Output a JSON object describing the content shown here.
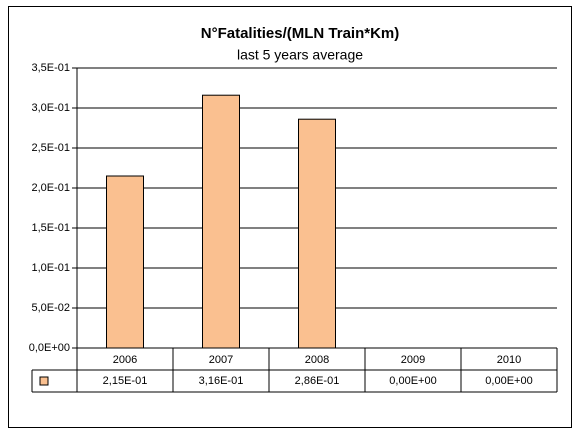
{
  "chart_data": {
    "type": "bar",
    "title": "N°Fatalities/(MLN Train*Km)",
    "subtitle": "last 5 years average",
    "categories": [
      "2006",
      "2007",
      "2008",
      "2009",
      "2010"
    ],
    "values": [
      0.215,
      0.316,
      0.286,
      0,
      0
    ],
    "value_labels": [
      "2,15E-01",
      "3,16E-01",
      "2,86E-01",
      "0,00E+00",
      "0,00E+00"
    ],
    "color": "#fac090",
    "ylim": [
      0,
      0.35
    ],
    "yticks": [
      {
        "value": 0,
        "label": "0,0E+00"
      },
      {
        "value": 0.05,
        "label": "5,0E-02"
      },
      {
        "value": 0.1,
        "label": "1,0E-01"
      },
      {
        "value": 0.15,
        "label": "1,5E-01"
      },
      {
        "value": 0.2,
        "label": "2,0E-01"
      },
      {
        "value": 0.25,
        "label": "2,5E-01"
      },
      {
        "value": 0.3,
        "label": "3,0E-01"
      },
      {
        "value": 0.35,
        "label": "3,5E-01"
      }
    ],
    "grid": true
  }
}
